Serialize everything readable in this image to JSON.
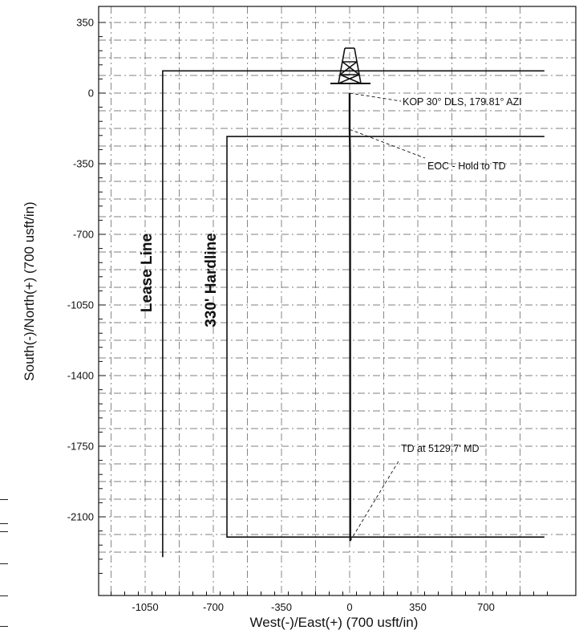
{
  "chart_data": {
    "type": "line",
    "title": "",
    "xlabel": "West(-)/East(+) (700 usft/in)",
    "ylabel": "South(-)/North(+) (700 usft/in)",
    "xlim": [
      -1250,
      1000
    ],
    "ylim": [
      -2390,
      410
    ],
    "x_ticks": [
      -1050,
      -700,
      -350,
      0,
      350,
      700
    ],
    "y_ticks": [
      350,
      0,
      -350,
      -700,
      -1050,
      -1400,
      -1750,
      -2100
    ],
    "grid": "dash-dot",
    "series": [
      {
        "values": [
          {
            "x": 0,
            "y": 0
          },
          {
            "x": 0,
            "y": -180
          },
          {
            "x": 2,
            "y": -300
          },
          {
            "x": 3,
            "y": -2220
          }
        ]
      }
    ],
    "boundaries": [
      {
        "label": "Lease Line",
        "points": [
          {
            "x": 1000,
            "y": 110
          },
          {
            "x": -960,
            "y": 110
          },
          {
            "x": -960,
            "y": -2300
          }
        ]
      },
      {
        "label": "330' Hardline",
        "points": [
          {
            "x": 1000,
            "y": -215
          },
          {
            "x": -630,
            "y": -215
          },
          {
            "x": -630,
            "y": -2200
          },
          {
            "x": 1000,
            "y": -2200
          }
        ]
      }
    ],
    "annotations": [
      {
        "text": "KOP 30° DLS, 179.81° AZI",
        "x": 0,
        "y": 0
      },
      {
        "text": "EOC - Hold to TD",
        "x": 0,
        "y": -180
      },
      {
        "text": "TD at 5129.7' MD",
        "x": 3,
        "y": -2220
      }
    ],
    "icons": [
      "drilling-rig-icon"
    ]
  }
}
